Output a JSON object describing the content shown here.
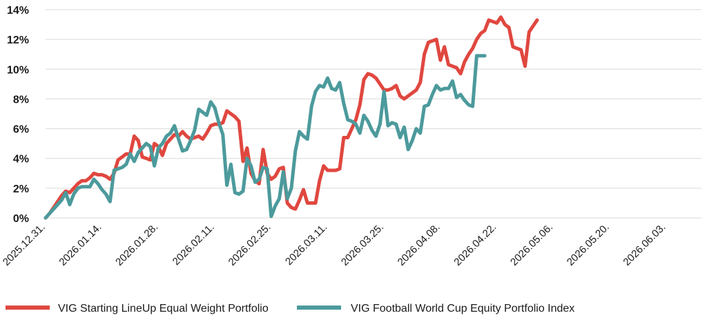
{
  "chart_data": {
    "type": "line",
    "title": "",
    "xlabel": "",
    "ylabel": "",
    "ylim": [
      0,
      14
    ],
    "y_ticks": [
      0,
      2,
      4,
      6,
      8,
      10,
      12,
      14
    ],
    "y_tick_labels": [
      "0%",
      "2%",
      "4%",
      "6%",
      "8%",
      "10%",
      "12%",
      "14%"
    ],
    "x_ticks": [
      "2025.12.31.",
      "2026.01.14.",
      "2026.01.28.",
      "2026.02.11.",
      "2026.02.25.",
      "2026.03.11.",
      "2026.03.25.",
      "2026.04.08.",
      "2026.04.22.",
      "2026.05.06.",
      "2026.05.20.",
      "2026.06.03."
    ],
    "x_tick_days": [
      0,
      14,
      28,
      42,
      56,
      70,
      84,
      98,
      112,
      126,
      140,
      154
    ],
    "xlim_days": [
      0,
      163
    ],
    "grid": "horizontal",
    "legend_position": "bottom",
    "series": [
      {
        "name": "VIG Starting LineUp Equal Weight Portfolio",
        "color": "#e0473f",
        "points": [
          [
            0,
            0
          ],
          [
            1,
            0.3
          ],
          [
            2,
            0.7
          ],
          [
            3,
            1.1
          ],
          [
            4,
            1.5
          ],
          [
            5,
            1.8
          ],
          [
            6,
            1.7
          ],
          [
            7,
            2.0
          ],
          [
            8,
            2.3
          ],
          [
            9,
            2.5
          ],
          [
            10,
            2.5
          ],
          [
            11,
            2.7
          ],
          [
            12,
            3.0
          ],
          [
            13,
            2.9
          ],
          [
            14,
            2.9
          ],
          [
            15,
            2.8
          ],
          [
            16,
            2.6
          ],
          [
            17,
            3.0
          ],
          [
            18,
            3.9
          ],
          [
            19,
            4.1
          ],
          [
            20,
            4.3
          ],
          [
            21,
            4.3
          ],
          [
            22,
            5.5
          ],
          [
            23,
            5.2
          ],
          [
            24,
            4.1
          ],
          [
            25,
            4.0
          ],
          [
            26,
            3.9
          ],
          [
            27,
            5.0
          ],
          [
            28,
            4.8
          ],
          [
            29,
            4.2
          ],
          [
            30,
            5.0
          ],
          [
            31,
            5.3
          ],
          [
            32,
            5.6
          ],
          [
            33,
            5.5
          ],
          [
            34,
            5.8
          ],
          [
            35,
            5.5
          ],
          [
            36,
            5.3
          ],
          [
            37,
            5.4
          ],
          [
            38,
            5.5
          ],
          [
            39,
            5.3
          ],
          [
            40,
            5.7
          ],
          [
            41,
            6.2
          ],
          [
            42,
            6.3
          ],
          [
            43,
            6.3
          ],
          [
            44,
            6.4
          ],
          [
            45,
            7.2
          ],
          [
            46,
            7.0
          ],
          [
            47,
            6.8
          ],
          [
            48,
            6.5
          ],
          [
            49,
            3.8
          ],
          [
            50,
            4.7
          ],
          [
            51,
            3.0
          ],
          [
            52,
            2.5
          ],
          [
            53,
            2.3
          ],
          [
            54,
            4.6
          ],
          [
            55,
            3.0
          ],
          [
            56,
            2.6
          ],
          [
            57,
            2.8
          ],
          [
            58,
            3.3
          ],
          [
            59,
            3.4
          ],
          [
            60,
            1.0
          ],
          [
            61,
            0.7
          ],
          [
            62,
            0.6
          ],
          [
            63,
            1.2
          ],
          [
            64,
            1.9
          ],
          [
            65,
            1.0
          ],
          [
            66,
            1.0
          ],
          [
            67,
            1.0
          ],
          [
            68,
            2.5
          ],
          [
            69,
            3.5
          ],
          [
            70,
            3.2
          ],
          [
            71,
            3.2
          ],
          [
            72,
            3.2
          ],
          [
            73,
            3.3
          ],
          [
            74,
            5.4
          ],
          [
            75,
            5.4
          ],
          [
            76,
            6.0
          ],
          [
            77,
            6.6
          ],
          [
            78,
            7.6
          ],
          [
            79,
            9.3
          ],
          [
            80,
            9.7
          ],
          [
            81,
            9.6
          ],
          [
            82,
            9.4
          ],
          [
            83,
            9.0
          ],
          [
            84,
            8.6
          ],
          [
            85,
            8.6
          ],
          [
            86,
            8.7
          ],
          [
            87,
            8.9
          ],
          [
            88,
            8.2
          ],
          [
            89,
            8.0
          ],
          [
            90,
            8.2
          ],
          [
            91,
            8.4
          ],
          [
            92,
            8.6
          ],
          [
            93,
            9.1
          ],
          [
            94,
            11.0
          ],
          [
            95,
            11.8
          ],
          [
            96,
            11.9
          ],
          [
            97,
            12.0
          ],
          [
            98,
            10.6
          ],
          [
            99,
            11.5
          ],
          [
            100,
            10.3
          ],
          [
            101,
            10.2
          ],
          [
            102,
            10.1
          ],
          [
            103,
            9.7
          ],
          [
            104,
            10.5
          ],
          [
            105,
            11.0
          ],
          [
            106,
            11.4
          ],
          [
            107,
            12.0
          ],
          [
            108,
            12.4
          ],
          [
            109,
            12.6
          ],
          [
            110,
            13.3
          ],
          [
            111,
            13.2
          ],
          [
            112,
            13.1
          ],
          [
            113,
            13.5
          ],
          [
            114,
            13.0
          ],
          [
            115,
            12.8
          ],
          [
            116,
            11.5
          ],
          [
            117,
            11.4
          ],
          [
            118,
            11.3
          ],
          [
            119,
            10.2
          ],
          [
            120,
            12.5
          ],
          [
            121,
            12.9
          ],
          [
            122,
            13.3
          ]
        ]
      },
      {
        "name": "VIG Football World Cup Equity Portfolio Index",
        "color": "#4c9a9c",
        "points": [
          [
            0,
            0
          ],
          [
            1,
            0.3
          ],
          [
            2,
            0.6
          ],
          [
            3,
            0.9
          ],
          [
            4,
            1.2
          ],
          [
            5,
            1.7
          ],
          [
            6,
            0.9
          ],
          [
            7,
            1.6
          ],
          [
            8,
            2.0
          ],
          [
            9,
            2.1
          ],
          [
            10,
            2.1
          ],
          [
            11,
            2.1
          ],
          [
            12,
            2.6
          ],
          [
            13,
            2.3
          ],
          [
            14,
            1.9
          ],
          [
            15,
            1.6
          ],
          [
            16,
            1.1
          ],
          [
            17,
            3.2
          ],
          [
            18,
            3.3
          ],
          [
            19,
            3.4
          ],
          [
            20,
            3.6
          ],
          [
            21,
            4.3
          ],
          [
            22,
            3.8
          ],
          [
            23,
            4.4
          ],
          [
            24,
            4.7
          ],
          [
            25,
            5.0
          ],
          [
            26,
            4.8
          ],
          [
            27,
            3.5
          ],
          [
            28,
            4.7
          ],
          [
            29,
            5.0
          ],
          [
            30,
            5.5
          ],
          [
            31,
            5.7
          ],
          [
            32,
            6.2
          ],
          [
            33,
            5.3
          ],
          [
            34,
            4.5
          ],
          [
            35,
            4.6
          ],
          [
            36,
            5.2
          ],
          [
            37,
            5.9
          ],
          [
            38,
            7.3
          ],
          [
            39,
            7.1
          ],
          [
            40,
            6.9
          ],
          [
            41,
            7.8
          ],
          [
            42,
            7.4
          ],
          [
            43,
            6.4
          ],
          [
            44,
            5.6
          ],
          [
            45,
            2.2
          ],
          [
            46,
            3.6
          ],
          [
            47,
            1.7
          ],
          [
            48,
            1.6
          ],
          [
            49,
            1.8
          ],
          [
            50,
            4.0
          ],
          [
            51,
            3.5
          ],
          [
            52,
            2.4
          ],
          [
            53,
            2.6
          ],
          [
            54,
            3.4
          ],
          [
            55,
            3.3
          ],
          [
            56,
            0.1
          ],
          [
            57,
            0.8
          ],
          [
            58,
            1.3
          ],
          [
            59,
            3.1
          ],
          [
            60,
            1.3
          ],
          [
            61,
            2.0
          ],
          [
            62,
            4.5
          ],
          [
            63,
            5.8
          ],
          [
            64,
            5.5
          ],
          [
            65,
            5.3
          ],
          [
            66,
            7.5
          ],
          [
            67,
            8.5
          ],
          [
            68,
            8.9
          ],
          [
            69,
            8.8
          ],
          [
            70,
            9.4
          ],
          [
            71,
            8.7
          ],
          [
            72,
            8.6
          ],
          [
            73,
            9.1
          ],
          [
            74,
            7.7
          ],
          [
            75,
            6.6
          ],
          [
            76,
            6.5
          ],
          [
            77,
            6.3
          ],
          [
            78,
            5.7
          ],
          [
            79,
            6.9
          ],
          [
            80,
            6.5
          ],
          [
            81,
            5.9
          ],
          [
            82,
            5.5
          ],
          [
            83,
            6.3
          ],
          [
            84,
            8.5
          ],
          [
            85,
            6.2
          ],
          [
            86,
            6.4
          ],
          [
            87,
            6.3
          ],
          [
            88,
            5.4
          ],
          [
            89,
            6.1
          ],
          [
            90,
            4.6
          ],
          [
            91,
            5.2
          ],
          [
            92,
            6.0
          ],
          [
            93,
            5.7
          ],
          [
            94,
            7.5
          ],
          [
            95,
            7.6
          ],
          [
            96,
            8.3
          ],
          [
            97,
            8.9
          ],
          [
            98,
            8.6
          ],
          [
            99,
            8.7
          ],
          [
            100,
            8.7
          ],
          [
            101,
            9.2
          ],
          [
            102,
            8.1
          ],
          [
            103,
            8.3
          ],
          [
            104,
            7.9
          ],
          [
            105,
            7.6
          ],
          [
            106,
            7.5
          ],
          [
            107,
            10.9
          ],
          [
            108,
            10.9
          ],
          [
            109,
            10.9
          ]
        ]
      }
    ]
  }
}
